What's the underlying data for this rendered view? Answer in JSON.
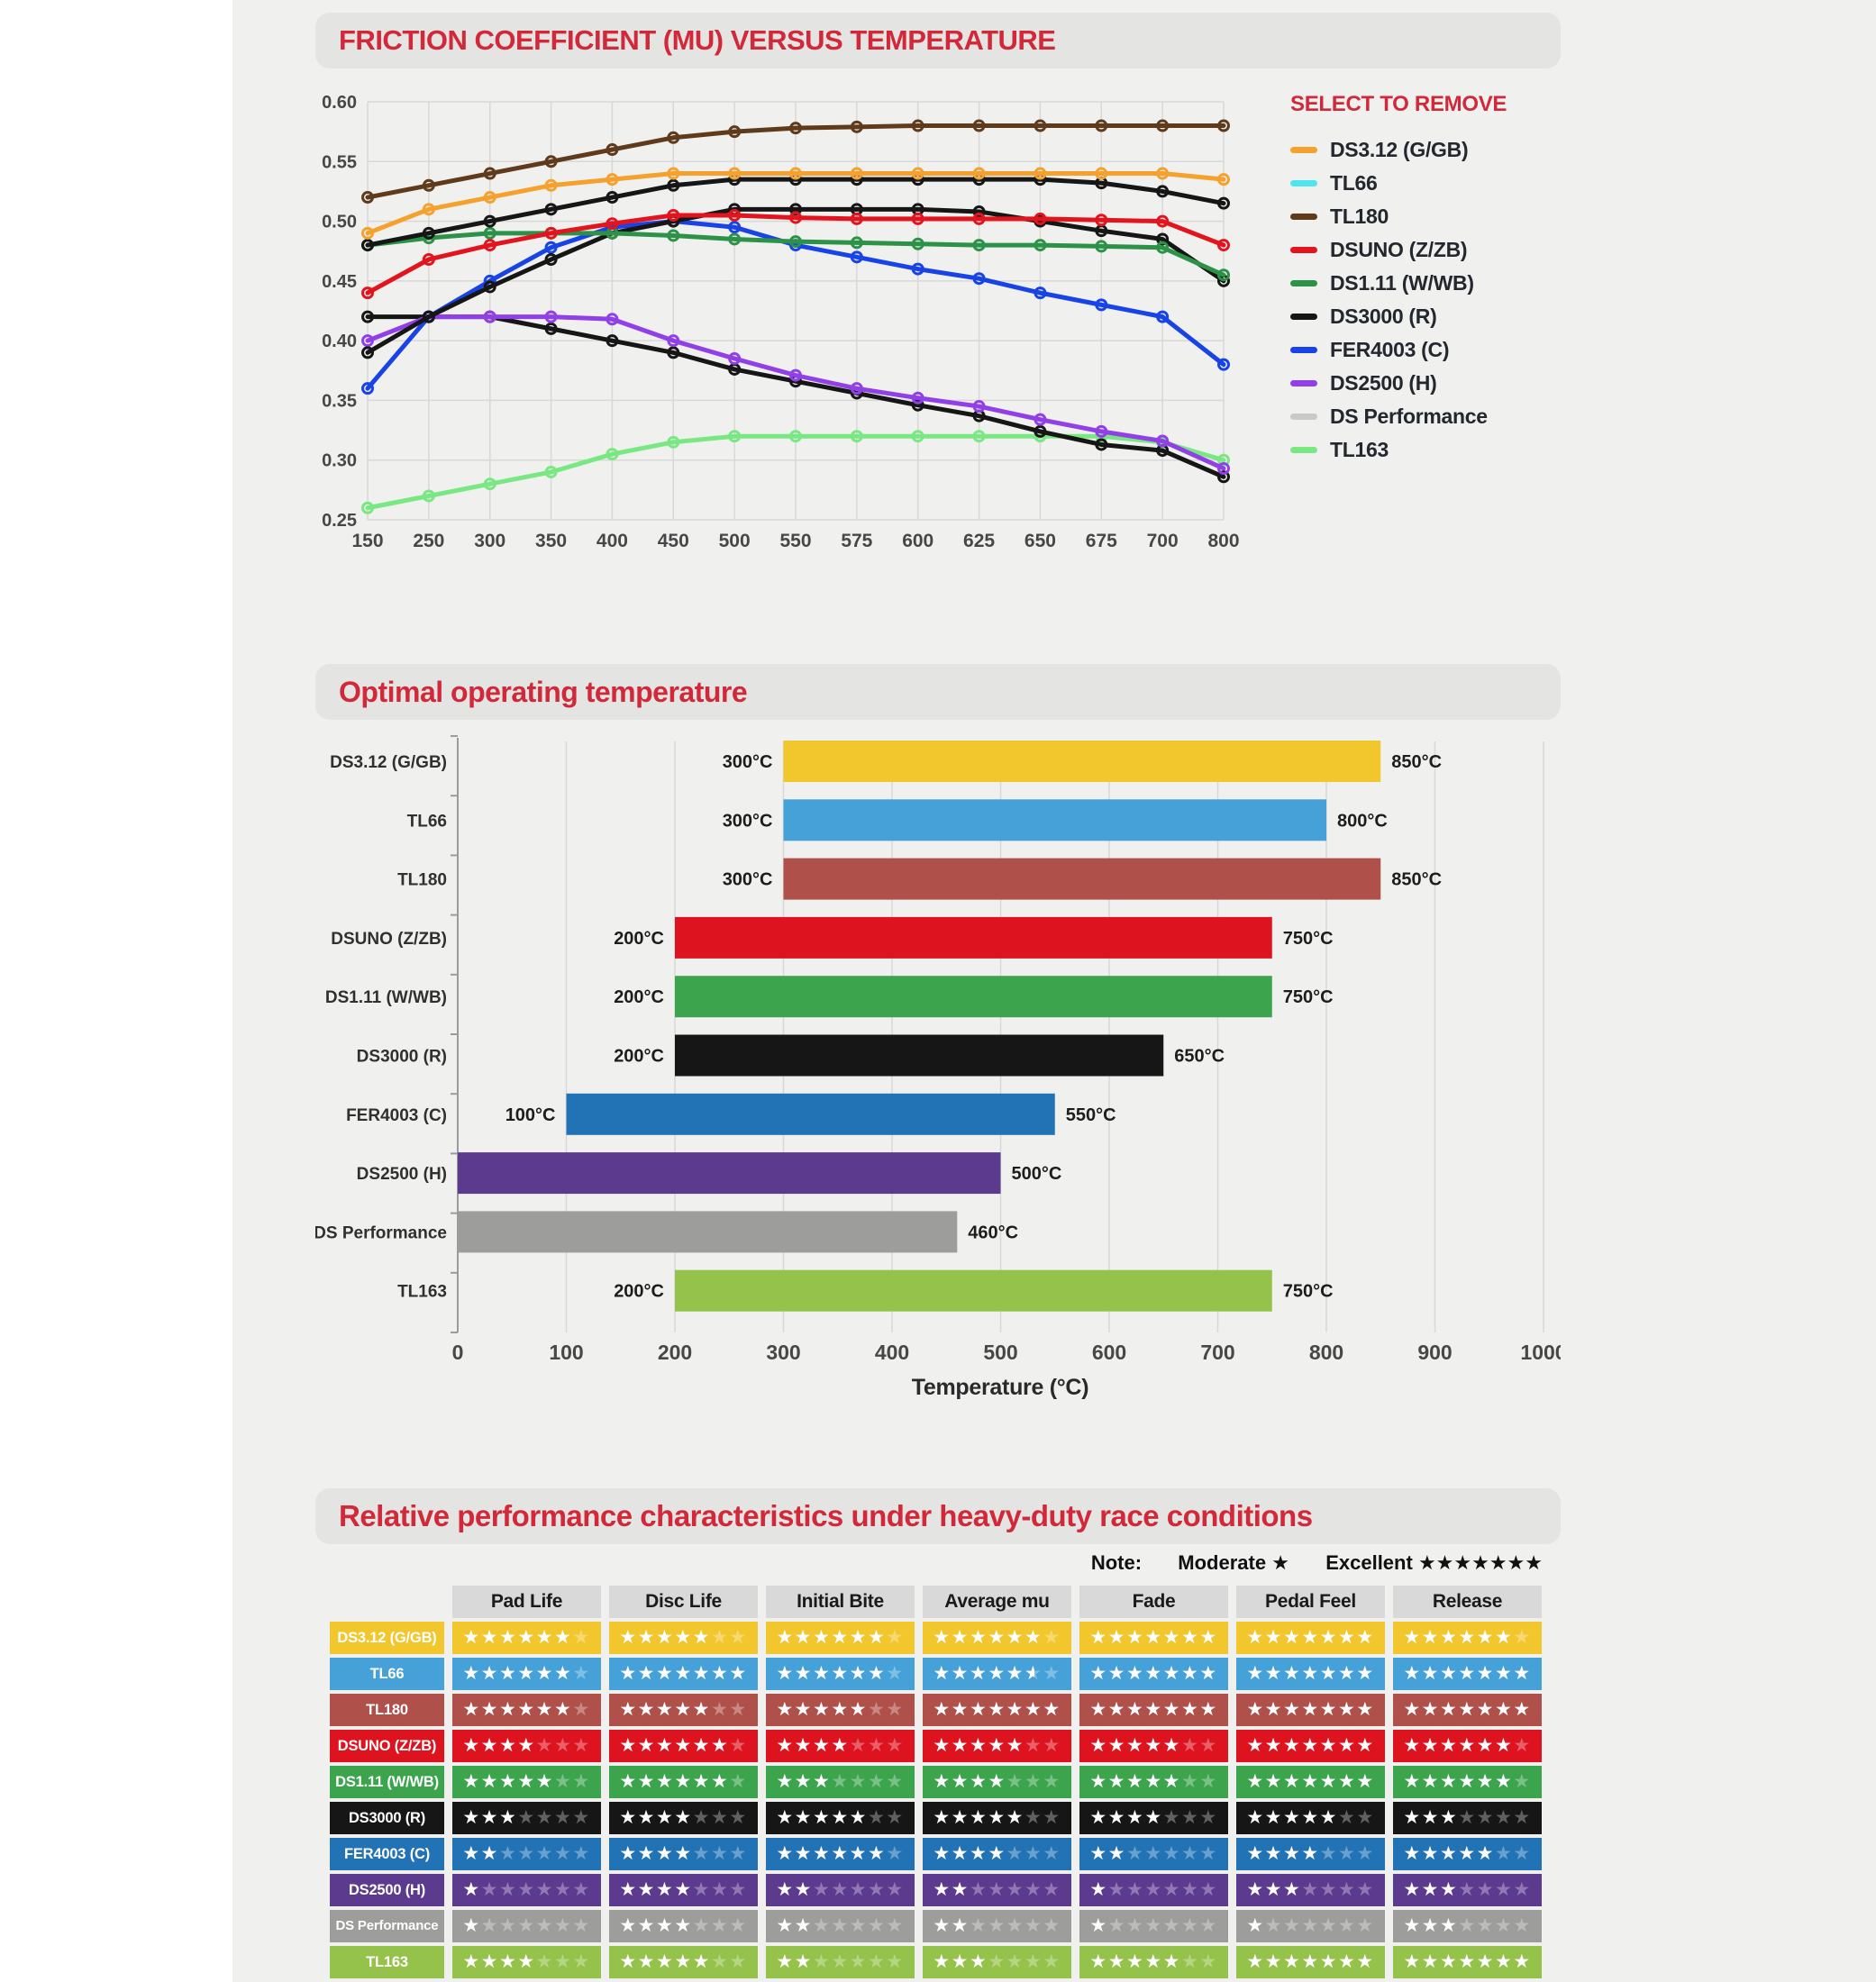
{
  "accent": "#D2293A",
  "chart_data": [
    {
      "type": "line",
      "title": "FRICTION COEFFICIENT (MU) VERSUS TEMPERATURE",
      "legend_title": "SELECT TO REMOVE",
      "xlabel": "",
      "ylabel": "",
      "ylim": [
        0.25,
        0.6
      ],
      "y_ticks": [
        "0.60",
        "0.55",
        "0.50",
        "0.45",
        "0.40",
        "0.35",
        "0.30",
        "0.25"
      ],
      "x_ticks": [
        "150",
        "250",
        "300",
        "350",
        "400",
        "450",
        "500",
        "550",
        "575",
        "600",
        "625",
        "650",
        "675",
        "700",
        "800"
      ],
      "grid": true,
      "legend_position": "right",
      "legend": [
        {
          "label": "DS3.12 (G/GB)",
          "color": "#F5A12D"
        },
        {
          "label": "TL66",
          "color": "#4EE5EE"
        },
        {
          "label": "TL180",
          "color": "#5F3A1B"
        },
        {
          "label": "DSUNO (Z/ZB)",
          "color": "#E2151F"
        },
        {
          "label": "DS1.11 (W/WB)",
          "color": "#2C9247"
        },
        {
          "label": "DS3000 (R)",
          "color": "#161616"
        },
        {
          "label": "FER4003 (C)",
          "color": "#1843E6"
        },
        {
          "label": "DS2500 (H)",
          "color": "#9140E8"
        },
        {
          "label": "DS Performance",
          "color": "#C9C9C9"
        },
        {
          "label": "TL163",
          "color": "#79E882"
        }
      ],
      "series": [
        {
          "name": "TL163",
          "line_color": "#79E882",
          "values": [
            0.26,
            0.27,
            0.28,
            0.29,
            0.305,
            0.315,
            0.32,
            0.32,
            0.32,
            0.32,
            0.32,
            0.32,
            0.32,
            0.315,
            0.3
          ]
        },
        {
          "name": "DS Performance",
          "line_color": "#161616",
          "values": [
            0.42,
            0.42,
            0.42,
            0.41,
            0.4,
            0.39,
            0.376,
            0.366,
            0.356,
            0.346,
            0.337,
            0.324,
            0.313,
            0.308,
            0.286
          ]
        },
        {
          "name": "DS2500 (H)",
          "line_color": "#9140E8",
          "values": [
            0.4,
            0.42,
            0.42,
            0.42,
            0.418,
            0.4,
            0.385,
            0.371,
            0.36,
            0.352,
            0.345,
            0.334,
            0.324,
            0.316,
            0.293
          ]
        },
        {
          "name": "FER4003 (C)",
          "line_color": "#1843E6",
          "values": [
            0.36,
            0.42,
            0.45,
            0.478,
            0.495,
            0.5,
            0.495,
            0.48,
            0.47,
            0.46,
            0.452,
            0.44,
            0.43,
            0.42,
            0.38
          ]
        },
        {
          "name": "DS3000 (R)",
          "line_color": "#161616",
          "values": [
            0.39,
            0.42,
            0.445,
            0.468,
            0.49,
            0.5,
            0.51,
            0.51,
            0.51,
            0.51,
            0.508,
            0.5,
            0.492,
            0.485,
            0.45
          ]
        },
        {
          "name": "DS1.11 (W/WB)",
          "line_color": "#2C9247",
          "values": [
            0.48,
            0.486,
            0.49,
            0.49,
            0.49,
            0.488,
            0.485,
            0.483,
            0.482,
            0.481,
            0.48,
            0.48,
            0.479,
            0.478,
            0.455
          ]
        },
        {
          "name": "DSUNO (Z/ZB)",
          "line_color": "#E2151F",
          "values": [
            0.44,
            0.468,
            0.48,
            0.49,
            0.498,
            0.505,
            0.505,
            0.503,
            0.502,
            0.502,
            0.502,
            0.502,
            0.501,
            0.5,
            0.48
          ]
        },
        {
          "name": "TL66",
          "line_color": "#161616",
          "values": [
            0.48,
            0.49,
            0.5,
            0.51,
            0.52,
            0.53,
            0.535,
            0.535,
            0.535,
            0.535,
            0.535,
            0.535,
            0.532,
            0.525,
            0.515
          ]
        },
        {
          "name": "DS3.12 (G/GB)",
          "line_color": "#F5A12D",
          "values": [
            0.49,
            0.51,
            0.52,
            0.53,
            0.535,
            0.54,
            0.54,
            0.54,
            0.54,
            0.54,
            0.54,
            0.54,
            0.54,
            0.54,
            0.535
          ]
        },
        {
          "name": "TL180",
          "line_color": "#5F3A1B",
          "values": [
            0.52,
            0.53,
            0.54,
            0.55,
            0.56,
            0.57,
            0.575,
            0.578,
            0.579,
            0.58,
            0.58,
            0.58,
            0.58,
            0.58,
            0.58
          ]
        }
      ]
    },
    {
      "type": "bar",
      "orientation": "horizontal",
      "title": "Optimal operating temperature",
      "xlabel": "Temperature (°C)",
      "xlim": [
        0,
        1000
      ],
      "x_ticks": [
        0,
        100,
        200,
        300,
        400,
        500,
        600,
        700,
        800,
        900,
        1000
      ],
      "grid": true,
      "unit": "°C",
      "bars": [
        {
          "label": "DS3.12 (G/GB)",
          "start": 300,
          "end": 850,
          "color": "#F2C72E"
        },
        {
          "label": "TL66",
          "start": 300,
          "end": 800,
          "color": "#45A1D8"
        },
        {
          "label": "TL180",
          "start": 300,
          "end": 850,
          "color": "#B0504B"
        },
        {
          "label": "DSUNO (Z/ZB)",
          "start": 200,
          "end": 750,
          "color": "#DD141F"
        },
        {
          "label": "DS1.11 (W/WB)",
          "start": 200,
          "end": 750,
          "color": "#3DA44E"
        },
        {
          "label": "DS3000 (R)",
          "start": 200,
          "end": 650,
          "color": "#161616"
        },
        {
          "label": "FER4003 (C)",
          "start": 100,
          "end": 550,
          "color": "#2273B6"
        },
        {
          "label": "DS2500 (H)",
          "start": 0,
          "end": 500,
          "color": "#5C3A8E"
        },
        {
          "label": "DS Performance",
          "start": 0,
          "end": 460,
          "color": "#9D9D9C"
        },
        {
          "label": "TL163",
          "start": 200,
          "end": 750,
          "color": "#94C24A"
        }
      ]
    },
    {
      "type": "table",
      "title": "Relative performance characteristics under heavy-duty race conditions",
      "note": {
        "label": "Note:",
        "moderate_label": "Moderate",
        "moderate_stars": "★",
        "excellent_label": "Excellent",
        "excellent_stars": "★★★★★★★"
      },
      "max_stars": 7,
      "columns": [
        "Pad Life",
        "Disc Life",
        "Initial Bite",
        "Average mu",
        "Fade",
        "Pedal Feel (Travel)",
        "Release"
      ],
      "rows": [
        {
          "label": "DS3.12 (G/GB)",
          "color": "#F2C72E",
          "ratings": [
            6,
            5,
            6,
            6,
            7,
            7,
            6
          ]
        },
        {
          "label": "TL66",
          "color": "#45A1D8",
          "ratings": [
            6,
            7,
            6,
            5.5,
            7,
            7,
            7
          ]
        },
        {
          "label": "TL180",
          "color": "#B0504B",
          "ratings": [
            6,
            5,
            5,
            7,
            7,
            7,
            7
          ]
        },
        {
          "label": "DSUNO (Z/ZB)",
          "color": "#DD141F",
          "ratings": [
            4,
            6,
            4,
            5,
            5,
            7,
            6
          ]
        },
        {
          "label": "DS1.11 (W/WB)",
          "color": "#3DA44E",
          "ratings": [
            5,
            6,
            3,
            4,
            5,
            7,
            6
          ]
        },
        {
          "label": "DS3000 (R)",
          "color": "#161616",
          "ratings": [
            3,
            4,
            5,
            5,
            4,
            5,
            3
          ]
        },
        {
          "label": "FER4003 (C)",
          "color": "#2273B6",
          "ratings": [
            2,
            4,
            6,
            4,
            2,
            4,
            5
          ]
        },
        {
          "label": "DS2500 (H)",
          "color": "#5C3A8E",
          "ratings": [
            1,
            4,
            2,
            2,
            1,
            3,
            3
          ]
        },
        {
          "label": "DS Performance",
          "color": "#9D9D9C",
          "ratings": [
            1,
            4,
            2,
            2,
            1,
            1,
            3
          ]
        },
        {
          "label": "TL163",
          "color": "#94C24A",
          "ratings": [
            4,
            5,
            2,
            3,
            5,
            7,
            7
          ]
        }
      ]
    }
  ]
}
